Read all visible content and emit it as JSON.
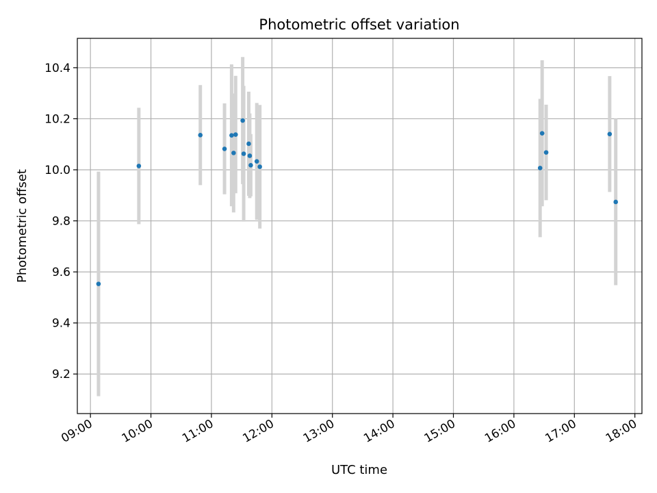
{
  "chart_data": {
    "type": "scatter",
    "title": "Photometric offset variation",
    "xlabel": "UTC time",
    "ylabel": "Photometric offset",
    "xlim": [
      "08:47",
      "18:07"
    ],
    "ylim": [
      9.045,
      10.515
    ],
    "x_ticks": [
      "09:00",
      "10:00",
      "11:00",
      "12:00",
      "13:00",
      "14:00",
      "15:00",
      "16:00",
      "17:00",
      "18:00"
    ],
    "y_ticks": [
      "9.2",
      "9.4",
      "9.6",
      "9.8",
      "10.0",
      "10.2",
      "10.4"
    ],
    "grid": true,
    "colors": {
      "point": "#1f77b4",
      "errorbar": "#d3d3d3",
      "grid": "#b0b0b0"
    },
    "series": [
      {
        "points": [
          {
            "x": "09:08",
            "y": 9.553,
            "err": 0.44
          },
          {
            "x": "09:48",
            "y": 10.015,
            "err": 0.228
          },
          {
            "x": "10:49",
            "y": 10.136,
            "err": 0.196
          },
          {
            "x": "11:13",
            "y": 10.082,
            "err": 0.178
          },
          {
            "x": "11:20",
            "y": 10.135,
            "err": 0.278
          },
          {
            "x": "11:22",
            "y": 10.066,
            "err": 0.233
          },
          {
            "x": "11:24",
            "y": 10.138,
            "err": 0.23
          },
          {
            "x": "11:31",
            "y": 10.193,
            "err": 0.249
          },
          {
            "x": "11:32",
            "y": 10.063,
            "err": 0.266
          },
          {
            "x": "11:37",
            "y": 10.102,
            "err": 0.204
          },
          {
            "x": "11:38",
            "y": 10.055,
            "err": 0.166
          },
          {
            "x": "11:39",
            "y": 10.018,
            "err": 0.122
          },
          {
            "x": "11:45",
            "y": 10.033,
            "err": 0.229
          },
          {
            "x": "11:48",
            "y": 10.012,
            "err": 0.242
          },
          {
            "x": "16:26",
            "y": 10.007,
            "err": 0.271
          },
          {
            "x": "16:28",
            "y": 10.143,
            "err": 0.286
          },
          {
            "x": "16:32",
            "y": 10.068,
            "err": 0.187
          },
          {
            "x": "17:35",
            "y": 10.14,
            "err": 0.227
          },
          {
            "x": "17:41",
            "y": 9.874,
            "err": 0.326
          }
        ]
      }
    ]
  }
}
